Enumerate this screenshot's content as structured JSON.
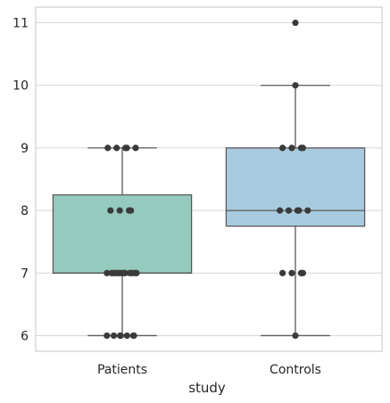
{
  "chart_data": {
    "type": "box",
    "xlabel": "study",
    "ylabel": "",
    "categories": [
      "Patients",
      "Controls"
    ],
    "ylim": [
      5.75,
      11.25
    ],
    "yticks": [
      6,
      7,
      8,
      9,
      10,
      11
    ],
    "grid": true,
    "box_colors": [
      "#95cbbf",
      "#a9cbe0"
    ],
    "boxes": [
      {
        "name": "Patients",
        "whisker_low": 6,
        "q1": 7,
        "median": 7,
        "q3": 8.25,
        "whisker_high": 9,
        "outliers": []
      },
      {
        "name": "Controls",
        "whisker_low": 6,
        "q1": 7.75,
        "median": 8,
        "q3": 9,
        "whisker_high": 10,
        "outliers": [
          11
        ]
      }
    ],
    "points": [
      {
        "category": "Patients",
        "values": [
          6,
          6,
          6,
          6,
          6,
          6,
          6,
          7,
          7,
          7,
          7,
          7,
          7,
          7,
          7,
          7,
          7,
          7,
          7,
          8,
          8,
          8,
          8,
          9,
          9,
          9,
          9,
          9
        ]
      },
      {
        "category": "Controls",
        "values": [
          6,
          7,
          7,
          7,
          7,
          8,
          8,
          8,
          8,
          8,
          9,
          9,
          9,
          9,
          10,
          11
        ]
      }
    ]
  }
}
